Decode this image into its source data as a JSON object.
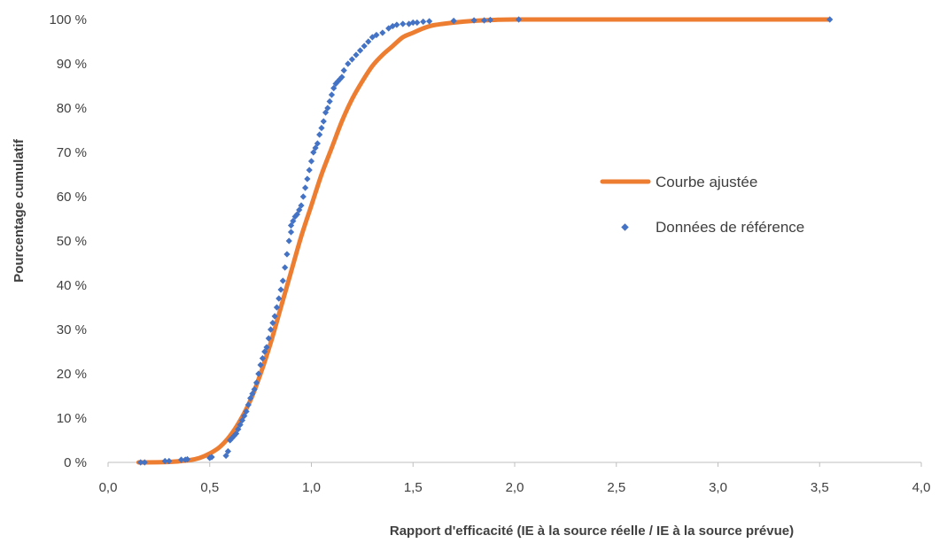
{
  "chart_data": {
    "type": "scatter",
    "title": "",
    "xlabel": "Rapport d'efficacité (IE à la source réelle / IE à la source prévue)",
    "ylabel": "Pourcentage  cumulatif",
    "xlim": [
      0,
      4
    ],
    "ylim": [
      0,
      100
    ],
    "x_ticks": [
      "0,0",
      "0,5",
      "1,0",
      "1,5",
      "2,0",
      "2,5",
      "3,0",
      "3,5",
      "4,0"
    ],
    "x_tick_values": [
      0,
      0.5,
      1.0,
      1.5,
      2.0,
      2.5,
      3.0,
      3.5,
      4.0
    ],
    "y_ticks": [
      "0 %",
      "10 %",
      "20 %",
      "30 %",
      "40 %",
      "50 %",
      "60 %",
      "70 %",
      "80 %",
      "90 %",
      "100 %"
    ],
    "y_tick_values": [
      0,
      10,
      20,
      30,
      40,
      50,
      60,
      70,
      80,
      90,
      100
    ],
    "grid": false,
    "legend_position": "right",
    "series": [
      {
        "name": "Courbe ajustée",
        "kind": "line",
        "color": "#ED7D31",
        "x": [
          0.15,
          0.3,
          0.4,
          0.45,
          0.5,
          0.55,
          0.6,
          0.65,
          0.7,
          0.75,
          0.8,
          0.85,
          0.9,
          0.95,
          1.0,
          1.05,
          1.1,
          1.15,
          1.2,
          1.25,
          1.3,
          1.35,
          1.4,
          1.45,
          1.5,
          1.55,
          1.6,
          1.7,
          1.8,
          1.9,
          2.0,
          2.5,
          3.0,
          3.55
        ],
        "y": [
          0,
          0.1,
          0.5,
          1,
          2,
          3.5,
          6,
          9.5,
          14,
          20,
          27,
          35,
          43,
          51,
          58,
          65,
          71,
          77,
          82,
          86,
          89.5,
          92,
          94,
          96,
          97,
          98,
          98.7,
          99.3,
          99.7,
          99.9,
          100,
          100,
          100,
          100
        ]
      },
      {
        "name": "Données de référence",
        "kind": "scatter",
        "color": "#4472C4",
        "x": [
          0.16,
          0.18,
          0.28,
          0.3,
          0.36,
          0.38,
          0.39,
          0.5,
          0.51,
          0.58,
          0.59,
          0.6,
          0.61,
          0.62,
          0.63,
          0.64,
          0.65,
          0.66,
          0.67,
          0.68,
          0.69,
          0.7,
          0.71,
          0.72,
          0.73,
          0.74,
          0.75,
          0.76,
          0.77,
          0.78,
          0.79,
          0.8,
          0.81,
          0.82,
          0.83,
          0.84,
          0.85,
          0.86,
          0.87,
          0.88,
          0.89,
          0.9,
          0.9,
          0.91,
          0.92,
          0.93,
          0.94,
          0.95,
          0.96,
          0.97,
          0.98,
          0.99,
          1.0,
          1.01,
          1.02,
          1.03,
          1.04,
          1.05,
          1.06,
          1.07,
          1.08,
          1.09,
          1.1,
          1.11,
          1.12,
          1.13,
          1.14,
          1.15,
          1.16,
          1.18,
          1.2,
          1.22,
          1.24,
          1.26,
          1.28,
          1.3,
          1.32,
          1.35,
          1.38,
          1.4,
          1.42,
          1.45,
          1.48,
          1.5,
          1.52,
          1.55,
          1.58,
          1.7,
          1.8,
          1.85,
          1.88,
          2.02,
          3.55
        ],
        "y": [
          0,
          0,
          0.3,
          0.3,
          0.6,
          0.6,
          0.7,
          1.0,
          1.2,
          1.5,
          2.5,
          5.0,
          5.5,
          6.0,
          6.5,
          7.5,
          8.5,
          9.5,
          10.5,
          11.5,
          13.0,
          14.5,
          15.5,
          16.5,
          18.0,
          20.0,
          22.0,
          23.5,
          25.0,
          26.0,
          28.0,
          30.0,
          31.5,
          33.0,
          35.0,
          37.0,
          39.0,
          41.0,
          44.0,
          47.0,
          50.0,
          52.0,
          53.5,
          54.5,
          55.5,
          56.0,
          57.0,
          58.0,
          60.0,
          62.0,
          64.0,
          66.0,
          68.0,
          70.0,
          71.0,
          72.0,
          74.0,
          75.5,
          77.0,
          79.0,
          80.0,
          81.5,
          83.0,
          84.5,
          85.5,
          86.0,
          86.5,
          87.0,
          88.5,
          90.0,
          91.0,
          92.0,
          93.0,
          94.0,
          95.0,
          96.0,
          96.5,
          97.0,
          98.0,
          98.5,
          98.8,
          99.0,
          99.0,
          99.3,
          99.3,
          99.5,
          99.6,
          99.7,
          99.8,
          99.8,
          99.9,
          100,
          100
        ]
      }
    ]
  }
}
